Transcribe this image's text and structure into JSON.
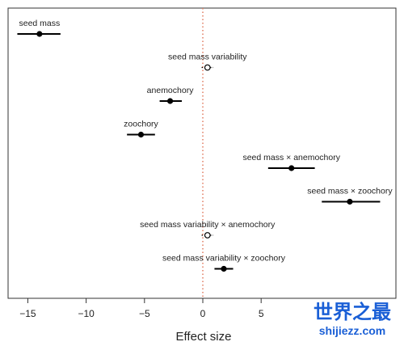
{
  "chart_data": {
    "type": "scatter",
    "subtype": "forest-plot",
    "xlabel": "Effect size",
    "ylabel": "",
    "xlim": [
      -16,
      16
    ],
    "xticks": [
      -15,
      -10,
      -5,
      0,
      5
    ],
    "xtick_labels": [
      "−15",
      "−10",
      "−5",
      "0",
      "5"
    ],
    "reference_line": {
      "x": 0,
      "style": "dotted",
      "color": "#e07a5f"
    },
    "grid": false,
    "point_color": "#000000",
    "items": [
      {
        "label": "seed mass",
        "estimate": -14.0,
        "ci_low": -15.9,
        "ci_high": -12.2,
        "marker": "filled"
      },
      {
        "label": "seed mass variability",
        "estimate": 0.4,
        "ci_low": -0.1,
        "ci_high": 0.9,
        "marker": "open"
      },
      {
        "label": "anemochory",
        "estimate": -2.8,
        "ci_low": -3.7,
        "ci_high": -1.8,
        "marker": "filled"
      },
      {
        "label": "zoochory",
        "estimate": -5.3,
        "ci_low": -6.5,
        "ci_high": -4.1,
        "marker": "filled"
      },
      {
        "label": "seed mass × anemochory",
        "estimate": 7.6,
        "ci_low": 5.6,
        "ci_high": 9.6,
        "marker": "filled"
      },
      {
        "label": "seed mass × zoochory",
        "estimate": 12.6,
        "ci_low": 10.2,
        "ci_high": 15.2,
        "marker": "filled"
      },
      {
        "label": "seed mass variability × anemochory",
        "estimate": 0.4,
        "ci_low": -0.1,
        "ci_high": 0.9,
        "marker": "open"
      },
      {
        "label": "seed mass variability × zoochory",
        "estimate": 1.8,
        "ci_low": 1.0,
        "ci_high": 2.6,
        "marker": "filled"
      }
    ]
  },
  "watermark": {
    "cn_text": "世界之最",
    "url_text": "shijiezz.com",
    "color": "#1a5fd6"
  }
}
